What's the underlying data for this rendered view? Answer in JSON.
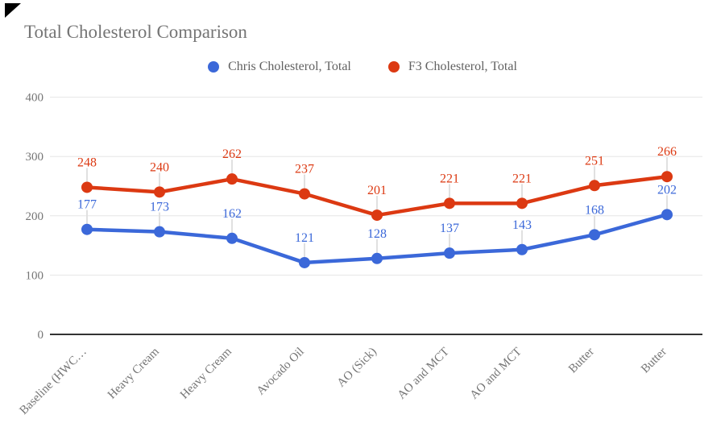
{
  "title": "Total Cholesterol Comparison",
  "chart_data": {
    "type": "line",
    "title": "Total Cholesterol Comparison",
    "categories": [
      "Baseline (HWC…",
      "Heavy Cream",
      "Heavy Cream",
      "Avocado Oil",
      "AO (Sick)",
      "AO and MCT",
      "AO and MCT",
      "Butter",
      "Butter"
    ],
    "series": [
      {
        "name": "Chris Cholesterol, Total",
        "color": "#3B68D9",
        "values": [
          177,
          173,
          162,
          121,
          128,
          137,
          143,
          168,
          202
        ]
      },
      {
        "name": "F3 Cholesterol, Total",
        "color": "#DC3912",
        "values": [
          248,
          240,
          262,
          237,
          201,
          221,
          221,
          251,
          266
        ]
      }
    ],
    "yticks": [
      0,
      100,
      200,
      300,
      400
    ],
    "ylim": [
      0,
      400
    ],
    "xlabel": "",
    "ylabel": "",
    "grid": true,
    "legend_position": "top",
    "point_labels_visible": true,
    "x_label_rotation_deg": -45
  },
  "colors": {
    "background": "#ffffff",
    "title_text": "#757575",
    "legend_text": "#616161",
    "axis_tick_text": "#757575",
    "gridline": "#e6e6e6",
    "baseline": "#333333",
    "label_leader": "#e0e0e0",
    "series_blue": "#3B68D9",
    "series_red": "#DC3912",
    "corner_marker": "#000000"
  }
}
